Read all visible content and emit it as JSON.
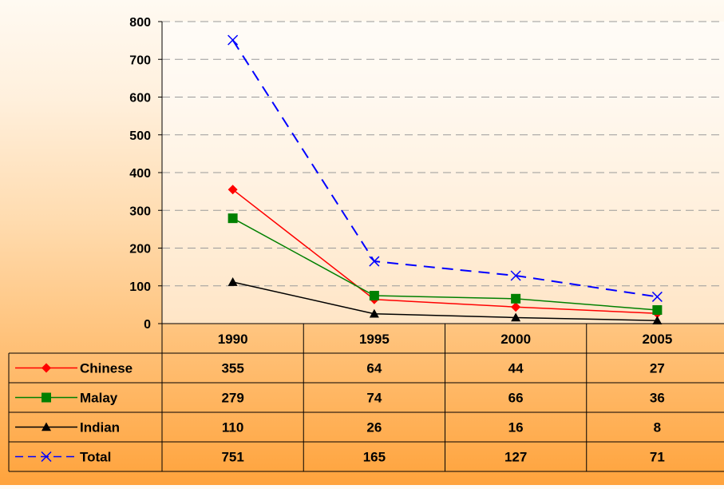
{
  "chart_data": {
    "type": "line",
    "categories": [
      "1990",
      "1995",
      "2000",
      "2005"
    ],
    "ylim": [
      0,
      800
    ],
    "yticks": [
      0,
      100,
      200,
      300,
      400,
      500,
      600,
      700,
      800
    ],
    "grid": true,
    "legend": "data table",
    "series": [
      {
        "name": "Chinese",
        "values": [
          355,
          64,
          44,
          27
        ],
        "color": "#ff0000",
        "marker": "diamond",
        "dash": false
      },
      {
        "name": "Malay",
        "values": [
          279,
          74,
          66,
          36
        ],
        "color": "#008000",
        "marker": "square",
        "dash": false
      },
      {
        "name": "Indian",
        "values": [
          110,
          26,
          16,
          8
        ],
        "color": "#000000",
        "marker": "triangle",
        "dash": false
      },
      {
        "name": "Total",
        "values": [
          751,
          165,
          127,
          71
        ],
        "color": "#0000ff",
        "marker": "x",
        "dash": true
      }
    ]
  }
}
